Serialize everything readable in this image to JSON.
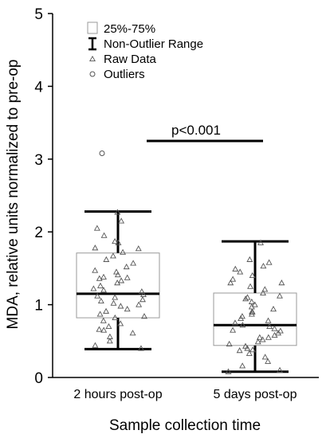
{
  "chart_data": {
    "type": "box",
    "xlabel": "Sample collection time",
    "ylabel": "MDA, relative units normalized to pre-op",
    "categories": [
      "2 hours post-op",
      "5 days post-op"
    ],
    "ylim": [
      0,
      5
    ],
    "yticks": [
      "0",
      "1",
      "2",
      "3",
      "4",
      "5"
    ],
    "legend": {
      "position": "top-left",
      "entries": [
        {
          "symbol": "box",
          "label": "25%-75%"
        },
        {
          "symbol": "whisker",
          "label": "Non-Outlier Range"
        },
        {
          "symbol": "triangle",
          "label": "Raw Data"
        },
        {
          "symbol": "circle",
          "label": "Outliers"
        }
      ]
    },
    "annotation": {
      "text": "p<0.001",
      "y": 3.25
    },
    "series": [
      {
        "category": "2 hours post-op",
        "q1": 0.82,
        "median": 1.15,
        "q3": 1.71,
        "whisker_low": 0.39,
        "whisker_high": 2.28,
        "outliers": [
          3.08
        ],
        "raw": [
          2.27,
          2.15,
          2.05,
          1.95,
          1.87,
          1.85,
          1.78,
          1.77,
          1.72,
          1.67,
          1.62,
          1.57,
          1.52,
          1.47,
          1.41,
          1.38,
          1.37,
          1.36,
          1.33,
          1.3,
          1.26,
          1.22,
          1.18,
          1.14,
          1.12,
          1.1,
          1.07,
          1.05,
          1.02,
          0.98,
          0.94,
          0.91,
          0.87,
          0.84,
          0.82,
          0.78,
          0.74,
          0.7,
          0.66,
          0.61,
          0.56,
          0.5,
          0.44,
          0.4,
          0.65,
          1.0,
          1.45,
          1.2
        ]
      },
      {
        "category": "5 days post-op",
        "q1": 0.44,
        "median": 0.72,
        "q3": 1.16,
        "whisker_low": 0.08,
        "whisker_high": 1.87,
        "outliers": [],
        "raw": [
          1.85,
          1.62,
          1.58,
          1.53,
          1.49,
          1.45,
          1.4,
          1.35,
          1.3,
          1.25,
          1.21,
          1.16,
          1.12,
          1.08,
          1.04,
          1.0,
          0.97,
          0.94,
          0.9,
          0.87,
          0.84,
          0.81,
          0.78,
          0.75,
          0.72,
          0.7,
          0.67,
          0.64,
          0.61,
          0.58,
          0.55,
          0.52,
          0.49,
          0.46,
          0.43,
          0.4,
          0.37,
          0.33,
          0.28,
          0.22,
          0.16,
          0.1,
          0.08,
          1.1,
          0.55,
          0.9,
          0.65,
          1.3,
          0.38
        ]
      }
    ]
  }
}
